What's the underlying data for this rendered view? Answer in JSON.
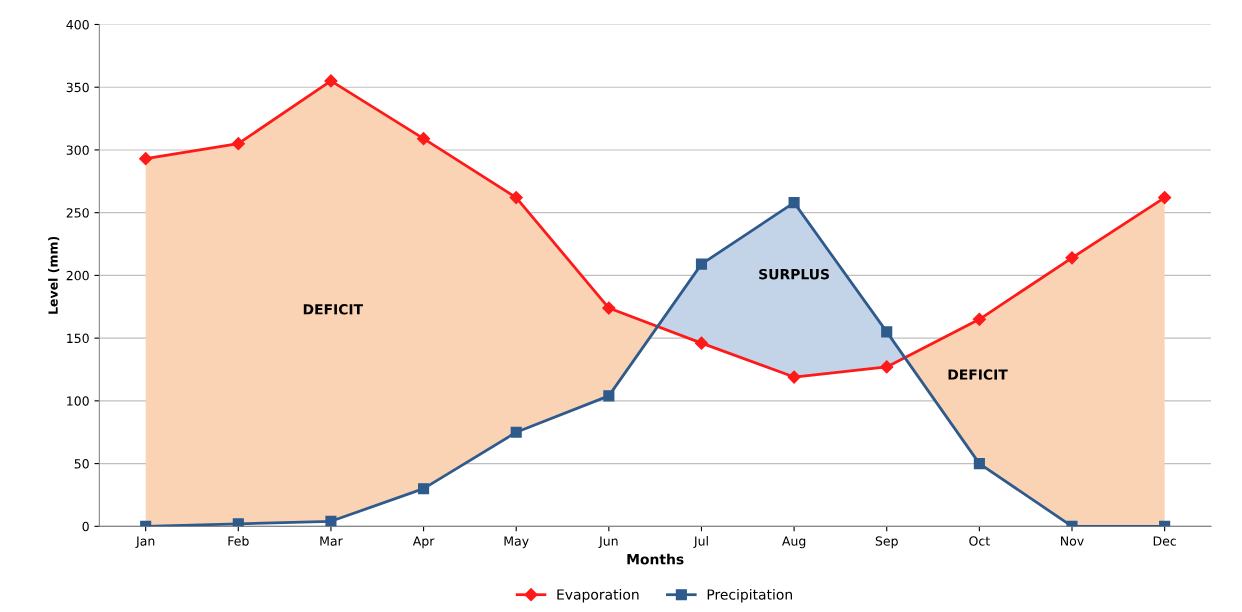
{
  "chart_data": {
    "type": "line",
    "xlabel": "Months",
    "ylabel": "Level (mm)",
    "categories": [
      "Jan",
      "Feb",
      "Mar",
      "Apr",
      "May",
      "Jun",
      "Jul",
      "Aug",
      "Sep",
      "Oct",
      "Nov",
      "Dec"
    ],
    "series": [
      {
        "name": "Evaporation",
        "color": "#ff1a1a",
        "marker": "diamond",
        "values": [
          293,
          305,
          355,
          309,
          262,
          174,
          146,
          119,
          127,
          165,
          214,
          262
        ]
      },
      {
        "name": "Precipitation",
        "color": "#2f5a8c",
        "marker": "square",
        "values": [
          0,
          2,
          4,
          30,
          75,
          104,
          209,
          258,
          155,
          50,
          0,
          0
        ]
      }
    ],
    "ylim": [
      0,
      400
    ],
    "yticks": [
      0,
      50,
      100,
      150,
      200,
      250,
      300,
      350,
      400
    ],
    "grid": "y",
    "legend": "bottom",
    "line_style": "solid",
    "annotations": [
      "DEFICIT",
      "SURPLUS",
      "DEFICIT"
    ]
  }
}
